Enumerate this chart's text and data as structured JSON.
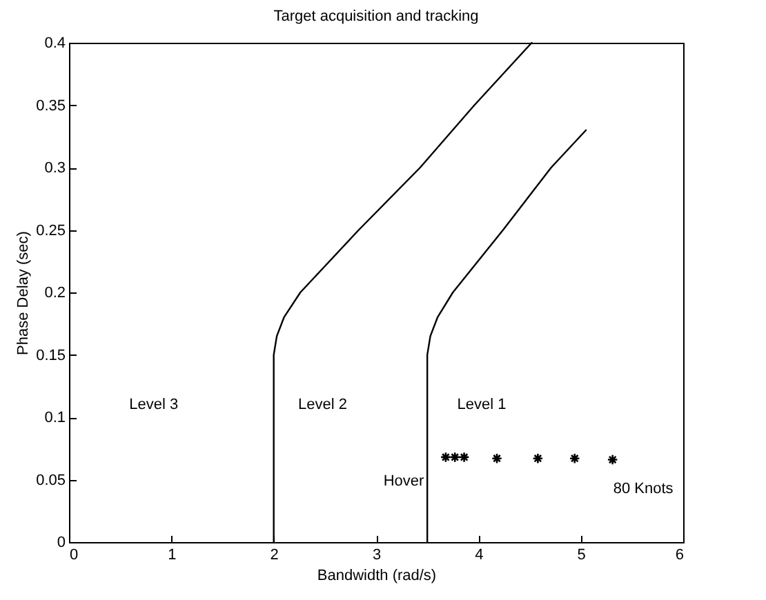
{
  "chart_data": {
    "type": "line",
    "title": "Target acquisition and tracking",
    "xlabel": "Bandwidth (rad/s)",
    "ylabel": "Phase Delay (sec)",
    "xlim": [
      0,
      6
    ],
    "ylim": [
      0,
      0.4
    ],
    "xticks": [
      0,
      1,
      2,
      3,
      4,
      5,
      6
    ],
    "yticks": [
      0,
      0.05,
      0.1,
      0.15,
      0.2,
      0.25,
      0.3,
      0.35,
      0.4
    ],
    "grid": false,
    "series": [
      {
        "color": "#000000",
        "x": [
          2,
          2,
          2.03,
          2.1,
          2.26,
          2.83,
          3.43,
          3.96,
          4.52
        ],
        "values": [
          0,
          0.15,
          0.165,
          0.18,
          0.2,
          0.25,
          0.3,
          0.35,
          0.4
        ]
      },
      {
        "color": "#000000",
        "x": [
          3.5,
          3.5,
          3.53,
          3.6,
          3.75,
          4.24,
          4.71,
          5.05
        ],
        "values": [
          0,
          0.15,
          0.165,
          0.18,
          0.2,
          0.25,
          0.3,
          0.33
        ]
      },
      {
        "type": "scatter",
        "color": "#000000",
        "marker": "cross",
        "x": [
          3.68,
          3.77,
          3.86,
          4.18,
          4.58,
          4.94,
          5.31
        ],
        "values": [
          0.068,
          0.068,
          0.068,
          0.067,
          0.067,
          0.067,
          0.066
        ]
      }
    ],
    "annotations": [
      "Level 3",
      "Level 2",
      "Level 1",
      "Hover",
      "80 Knots"
    ]
  }
}
